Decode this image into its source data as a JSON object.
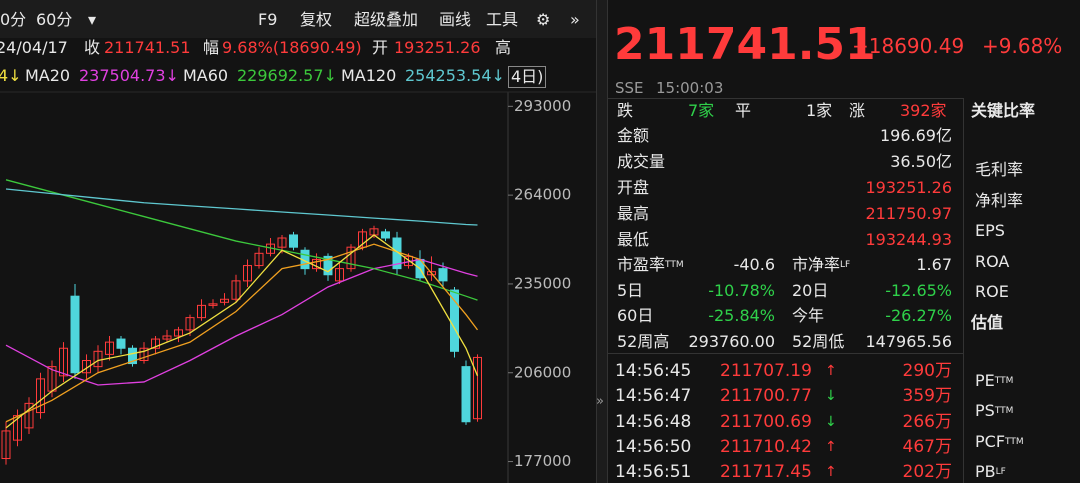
{
  "toolbar": {
    "items": [
      "0分",
      "60分",
      "▾",
      "F9",
      "复权",
      "超级叠加",
      "画线",
      "工具",
      "⚙",
      "»"
    ]
  },
  "info_bar": {
    "date": "24/04/17",
    "close_label": "收",
    "close": "211741.51",
    "range_label": "幅",
    "range": "9.68%(18690.49)",
    "open_label": "开",
    "open": "193251.26",
    "high_label": "高"
  },
  "chart_data": {
    "type": "candlestick",
    "legend_lead": "4↓",
    "legend_tail": "4日)",
    "ylim": [
      170000,
      298000
    ],
    "yticks": [
      177000,
      206000,
      235000,
      264000,
      293000
    ],
    "up_color": "#ff3b3b",
    "down_color": "#4fd6dc",
    "open": [
      178000,
      184000,
      188000,
      193000,
      200000,
      205000,
      231000,
      206000,
      208000,
      212000,
      217000,
      214000,
      210000,
      214000,
      217000,
      218000,
      220000,
      224000,
      228000,
      229000,
      230000,
      236000,
      241000,
      245000,
      247000,
      251000,
      246000,
      240000,
      244000,
      236000,
      240000,
      247000,
      251000,
      252000,
      250000,
      241000,
      243000,
      238000,
      240000,
      233000,
      208000,
      191000
    ],
    "close": [
      187000,
      192000,
      196000,
      204000,
      208000,
      214000,
      206000,
      210000,
      213000,
      216000,
      214000,
      209000,
      214000,
      217000,
      218000,
      220000,
      224000,
      228000,
      228500,
      230000,
      236000,
      241000,
      245000,
      248000,
      250000,
      247000,
      240000,
      243000,
      238000,
      240000,
      247000,
      252000,
      253000,
      250000,
      240000,
      244000,
      237000,
      239000,
      236000,
      213000,
      190000,
      211000
    ],
    "high": [
      190000,
      194000,
      198000,
      206000,
      210000,
      216000,
      235000,
      212000,
      215000,
      218000,
      218000,
      215000,
      216000,
      218000,
      220000,
      221000,
      225000,
      230000,
      230000,
      232000,
      238000,
      243000,
      247000,
      250000,
      251000,
      252000,
      247000,
      245000,
      245000,
      242000,
      248000,
      253000,
      254000,
      253000,
      252000,
      245000,
      246000,
      244000,
      242000,
      234000,
      210000,
      212000
    ],
    "low": [
      176000,
      182000,
      186000,
      191000,
      198000,
      203000,
      204000,
      204000,
      206000,
      210000,
      212000,
      208000,
      209000,
      212000,
      216000,
      216000,
      218000,
      223000,
      227000,
      228000,
      229000,
      234000,
      240000,
      244000,
      245000,
      246000,
      238000,
      239000,
      236000,
      235000,
      239000,
      246000,
      250000,
      249000,
      238000,
      240000,
      236000,
      236000,
      234000,
      211000,
      189000,
      190000
    ],
    "series": [
      {
        "name": "MA20",
        "legend_value": "237504.73↓",
        "color": "#e040e0",
        "x": [
          0,
          4,
          8,
          12,
          16,
          20,
          24,
          28,
          32,
          36,
          40,
          41
        ],
        "values": [
          215000,
          207000,
          202000,
          203000,
          210000,
          218000,
          225000,
          234000,
          240000,
          243000,
          238500,
          237500
        ]
      },
      {
        "name": "MA60",
        "legend_value": "229692.57↓",
        "color": "#3cc83c",
        "x": [
          0,
          4,
          8,
          12,
          16,
          20,
          24,
          28,
          32,
          36,
          40,
          41
        ],
        "values": [
          269000,
          265000,
          261000,
          257000,
          253000,
          249000,
          246000,
          243000,
          240000,
          236000,
          231000,
          229700
        ]
      },
      {
        "name": "MA120",
        "legend_value": "254253.54↓",
        "color": "#5fc8d0",
        "x": [
          0,
          4,
          8,
          12,
          16,
          20,
          24,
          28,
          32,
          36,
          40,
          41
        ],
        "values": [
          266000,
          264500,
          263000,
          261500,
          260500,
          259500,
          258500,
          257500,
          256500,
          255500,
          254400,
          254250
        ]
      },
      {
        "color": "#f0a020",
        "x": [
          0,
          4,
          8,
          12,
          16,
          20,
          24,
          28,
          32,
          36,
          40,
          41
        ],
        "values": [
          190000,
          197000,
          206000,
          211000,
          216000,
          226000,
          240000,
          243000,
          248000,
          243000,
          225000,
          220000
        ]
      },
      {
        "color": "#f0e040",
        "x": [
          0,
          4,
          8,
          12,
          16,
          20,
          24,
          28,
          32,
          36,
          40,
          41
        ],
        "values": [
          188000,
          200000,
          210000,
          213000,
          219000,
          229000,
          246000,
          239000,
          251000,
          240000,
          214000,
          205000
        ]
      }
    ]
  },
  "quote": {
    "price": "211741.51",
    "change": "+18690.49",
    "change_pct": "+9.68%",
    "exchange": "SSE",
    "time": "15:00:03"
  },
  "breadth": [
    {
      "label": "跌",
      "value": "7家"
    },
    {
      "label": "平",
      "value": "1家"
    },
    {
      "label": "涨",
      "value": "392家"
    }
  ],
  "stats": [
    {
      "label": "金额",
      "value": "196.69亿"
    },
    {
      "label": "成交量",
      "value": "36.50亿"
    },
    {
      "label": "开盘",
      "value": "193251.26"
    },
    {
      "label": "最高",
      "value": "211750.97"
    },
    {
      "label": "最低",
      "value": "193244.93"
    }
  ],
  "ratios": [
    {
      "label": "市盈率",
      "sup": "TTM",
      "value": "-40.6",
      "label2": "市净率",
      "sup2": "LF",
      "value2": "1.67"
    },
    {
      "label": "5日",
      "value": "-10.78%",
      "label2": "20日",
      "value2": "-12.65%"
    },
    {
      "label": "60日",
      "value": "-25.84%",
      "label2": "今年",
      "value2": "-26.27%"
    },
    {
      "label": "52周高",
      "value": "293760.00",
      "label2": "52周低",
      "value2": "147965.56"
    }
  ],
  "trades": [
    {
      "time": "14:56:45",
      "price": "211707.19",
      "arrow": "↑",
      "volume": "290万"
    },
    {
      "time": "14:56:47",
      "price": "211700.77",
      "arrow": "↓",
      "volume": "359万"
    },
    {
      "time": "14:56:48",
      "price": "211700.69",
      "arrow": "↓",
      "volume": "266万"
    },
    {
      "time": "14:56:50",
      "price": "211710.42",
      "arrow": "↑",
      "volume": "467万"
    },
    {
      "time": "14:56:51",
      "price": "211717.45",
      "arrow": "↑",
      "volume": "202万"
    }
  ],
  "side": {
    "title": "关键比率",
    "items": [
      "毛利率",
      "净利率",
      "EPS",
      "ROA",
      "ROE"
    ],
    "valuation_title": "估值",
    "valuation_items": [
      {
        "text": "PE",
        "sup": "TTM"
      },
      {
        "text": "PS",
        "sup": "TTM"
      },
      {
        "text": "PCF",
        "sup": "TTM"
      },
      {
        "text": "PB",
        "sup": "LF"
      }
    ]
  },
  "divider": "»"
}
